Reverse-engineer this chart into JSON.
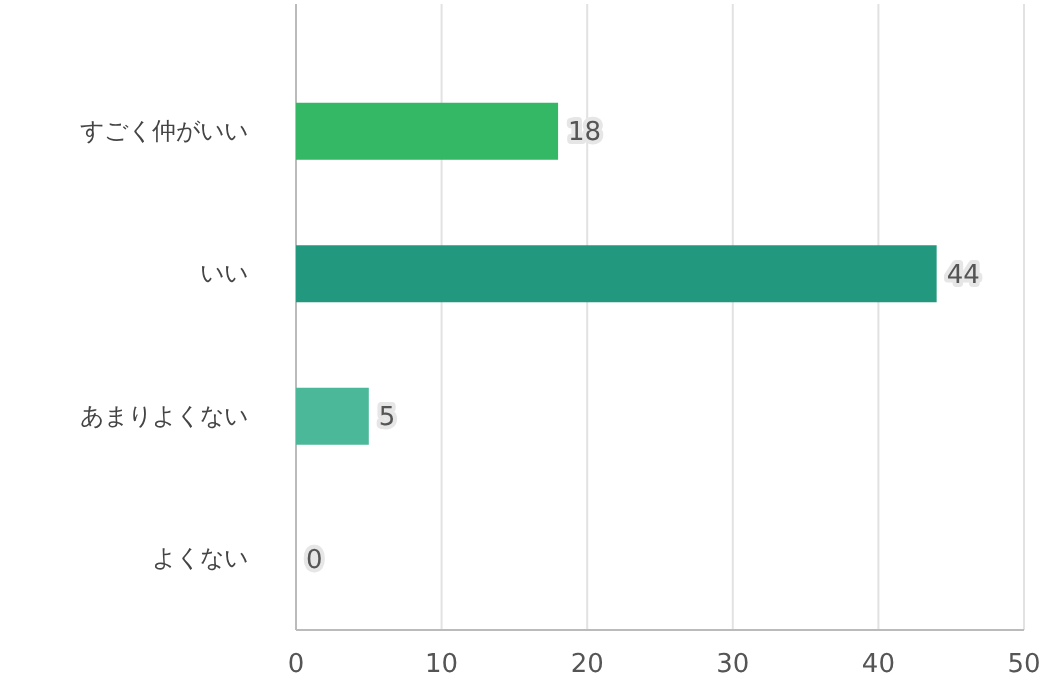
{
  "chart_data": {
    "type": "bar",
    "orientation": "horizontal",
    "categories": [
      "すごく仲がいい",
      "いい",
      "あまりよくない",
      "よくない"
    ],
    "values": [
      18,
      44,
      5,
      0
    ],
    "colors": [
      "#35b866",
      "#22997e",
      "#4bb89a",
      "#8fd3c0"
    ],
    "xlim": [
      0,
      50
    ],
    "xticks": [
      0,
      10,
      20,
      30,
      40,
      50
    ],
    "grid": "x",
    "data_labels": true
  }
}
